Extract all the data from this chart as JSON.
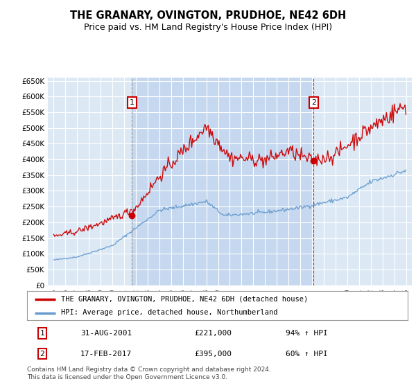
{
  "title": "THE GRANARY, OVINGTON, PRUDHOE, NE42 6DH",
  "subtitle": "Price paid vs. HM Land Registry's House Price Index (HPI)",
  "plot_bg_color": "#dce9f5",
  "highlight_bg_color": "#c5d8ef",
  "ylim": [
    0,
    660000
  ],
  "yticks": [
    0,
    50000,
    100000,
    150000,
    200000,
    250000,
    300000,
    350000,
    400000,
    450000,
    500000,
    550000,
    600000,
    650000
  ],
  "ytick_labels": [
    "£0",
    "£50K",
    "£100K",
    "£150K",
    "£200K",
    "£250K",
    "£300K",
    "£350K",
    "£400K",
    "£450K",
    "£500K",
    "£550K",
    "£600K",
    "£650K"
  ],
  "legend_label_red": "THE GRANARY, OVINGTON, PRUDHOE, NE42 6DH (detached house)",
  "legend_label_blue": "HPI: Average price, detached house, Northumberland",
  "annotation1_label": "1",
  "annotation1_date": "31-AUG-2001",
  "annotation1_price": "£221,000",
  "annotation1_pct": "94% ↑ HPI",
  "annotation2_label": "2",
  "annotation2_date": "17-FEB-2017",
  "annotation2_price": "£395,000",
  "annotation2_pct": "60% ↑ HPI",
  "footer": "Contains HM Land Registry data © Crown copyright and database right 2024.\nThis data is licensed under the Open Government Licence v3.0.",
  "red_color": "#cc0000",
  "blue_color": "#6699cc",
  "marker1_x_year": 2001.67,
  "marker1_y": 221000,
  "marker2_x_year": 2017.12,
  "marker2_y": 395000,
  "xlim_left": 1994.5,
  "xlim_right": 2025.5
}
